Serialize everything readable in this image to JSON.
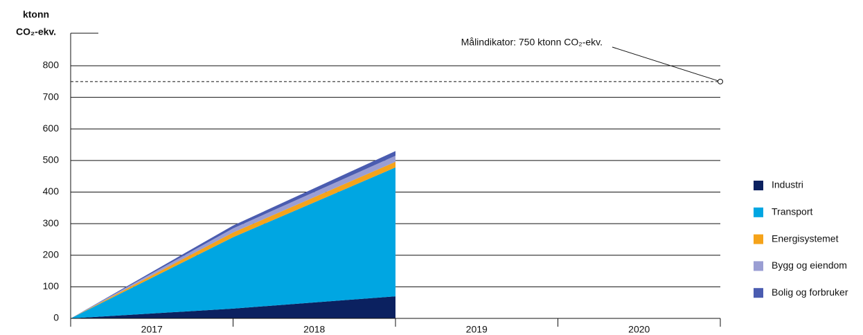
{
  "chart_data": {
    "type": "area",
    "stacked": true,
    "ylabel": [
      "ktonn",
      "CO₂-ekv."
    ],
    "categories": [
      "2017",
      "2018",
      "2019",
      "2020"
    ],
    "x": [
      0,
      1,
      2
    ],
    "xlim": [
      0,
      4
    ],
    "ylim": [
      0,
      800
    ],
    "yticks": [
      0,
      100,
      200,
      300,
      400,
      500,
      600,
      700,
      800
    ],
    "grid": true,
    "legend": "right",
    "series": [
      {
        "name": "Industri",
        "color": "#0b2160",
        "values": [
          0,
          31,
          70
        ]
      },
      {
        "name": "Transport",
        "color": "#00a6e2",
        "values": [
          0,
          226,
          408
        ]
      },
      {
        "name": "Energisystemet",
        "color": "#f5a31a",
        "values": [
          0,
          15,
          18
        ]
      },
      {
        "name": "Bygg og eiendom",
        "color": "#9a9ed3",
        "values": [
          0,
          13,
          19
        ]
      },
      {
        "name": "Bolig og forbruker",
        "color": "#4a5cb0",
        "values": [
          0,
          9,
          15
        ]
      }
    ],
    "target": {
      "value": 750,
      "label": "Målindikator: 750 ktonn CO₂-ekv."
    }
  }
}
